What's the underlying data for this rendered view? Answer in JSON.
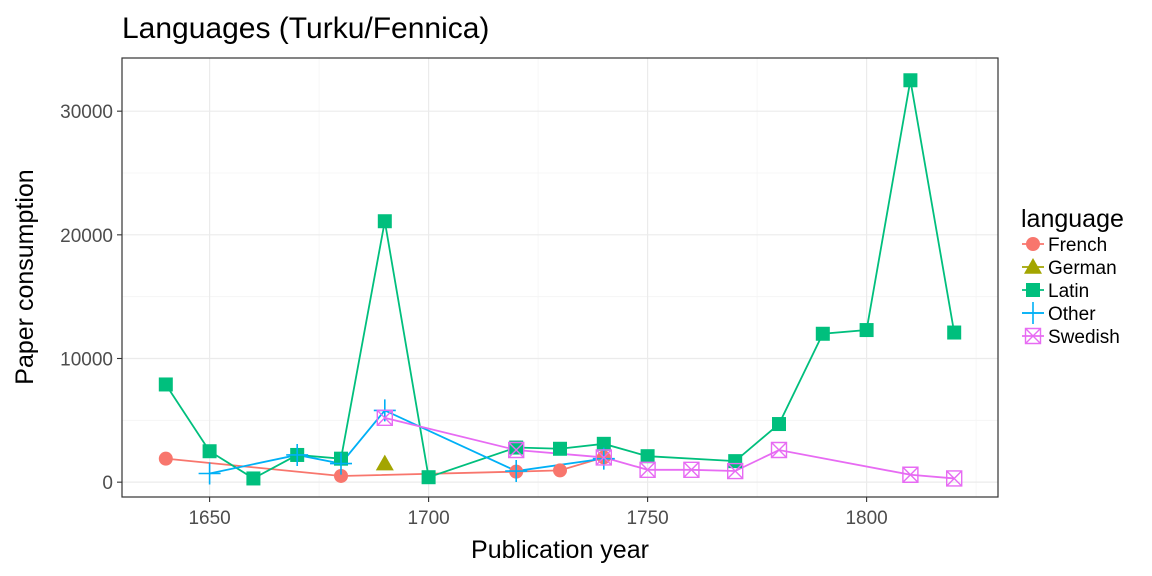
{
  "chart_data": {
    "type": "line",
    "title": "Languages (Turku/Fennica)",
    "xlabel": "Publication year",
    "ylabel": "Paper consumption",
    "xlim": [
      1630,
      1830
    ],
    "ylim": [
      -1200,
      34300
    ],
    "x_ticks": [
      1650,
      1700,
      1750,
      1800
    ],
    "y_ticks": [
      0,
      10000,
      20000,
      30000
    ],
    "x_tick_labels": [
      "1650",
      "1700",
      "1750",
      "1800"
    ],
    "y_tick_labels": [
      "0",
      "10000",
      "20000",
      "30000"
    ],
    "grid": true,
    "legend": {
      "title": "language",
      "placement": "right"
    },
    "series": [
      {
        "name": "French",
        "color": "#F8766D",
        "marker": "circle",
        "points": [
          [
            1640,
            1900
          ],
          [
            1680,
            500
          ],
          [
            1720,
            850
          ],
          [
            1730,
            950
          ],
          [
            1740,
            2000
          ]
        ]
      },
      {
        "name": "German",
        "color": "#A3A500",
        "marker": "triangle",
        "points": [
          [
            1690,
            1500
          ]
        ]
      },
      {
        "name": "Latin",
        "color": "#00BF7D",
        "marker": "square",
        "points": [
          [
            1640,
            7900
          ],
          [
            1650,
            2500
          ],
          [
            1660,
            300
          ],
          [
            1670,
            2200
          ],
          [
            1680,
            1900
          ],
          [
            1690,
            21100
          ],
          [
            1700,
            400
          ],
          [
            1720,
            2800
          ],
          [
            1730,
            2700
          ],
          [
            1740,
            3100
          ],
          [
            1750,
            2100
          ],
          [
            1770,
            1700
          ],
          [
            1780,
            4700
          ],
          [
            1790,
            12000
          ],
          [
            1800,
            12300
          ],
          [
            1810,
            32500
          ],
          [
            1820,
            12100
          ]
        ]
      },
      {
        "name": "Other",
        "color": "#00B0F6",
        "marker": "plus",
        "points": [
          [
            1650,
            700
          ],
          [
            1670,
            2200
          ],
          [
            1680,
            1500
          ],
          [
            1690,
            5800
          ],
          [
            1720,
            900
          ],
          [
            1740,
            1900
          ]
        ]
      },
      {
        "name": "Swedish",
        "color": "#E76BF3",
        "marker": "boxx",
        "points": [
          [
            1690,
            5200
          ],
          [
            1720,
            2600
          ],
          [
            1740,
            2000
          ],
          [
            1750,
            1000
          ],
          [
            1760,
            1000
          ],
          [
            1770,
            900
          ],
          [
            1780,
            2600
          ],
          [
            1810,
            600
          ],
          [
            1820,
            300
          ]
        ]
      }
    ]
  }
}
